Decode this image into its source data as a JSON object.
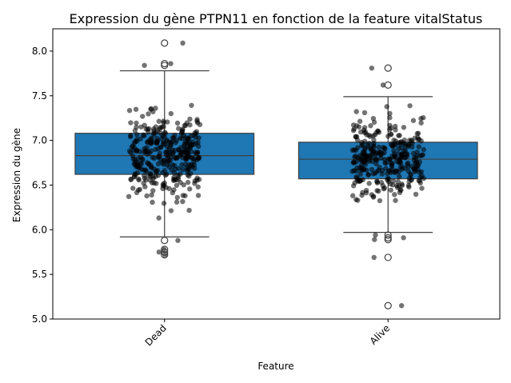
{
  "chart_data": {
    "type": "box",
    "title": "Expression du gène PTPN11 en fonction de la feature vitalStatus",
    "xlabel": "Feature",
    "ylabel": "Expression du gène",
    "ylim": [
      5.0,
      8.25
    ],
    "yticks": [
      5.0,
      5.5,
      6.0,
      6.5,
      7.0,
      7.5,
      8.0
    ],
    "ytick_labels": [
      "5.0",
      "5.5",
      "6.0",
      "6.5",
      "7.0",
      "7.5",
      "8.0"
    ],
    "categories": [
      "Dead",
      "Alive"
    ],
    "box_color": "#1f77b4",
    "point_color": "#000000",
    "grid": false,
    "boxes": [
      {
        "category": "Dead",
        "whisker_low": 5.92,
        "q1": 6.62,
        "median": 6.83,
        "q3": 7.08,
        "whisker_high": 7.78,
        "outliers": [
          8.09,
          7.86,
          7.84,
          5.88,
          5.78,
          5.75,
          5.72
        ]
      },
      {
        "category": "Alive",
        "whisker_low": 5.97,
        "q1": 6.57,
        "median": 6.79,
        "q3": 6.98,
        "whisker_high": 7.49,
        "outliers": [
          7.81,
          7.62,
          5.94,
          5.91,
          5.89,
          5.69,
          5.15
        ]
      }
    ]
  }
}
